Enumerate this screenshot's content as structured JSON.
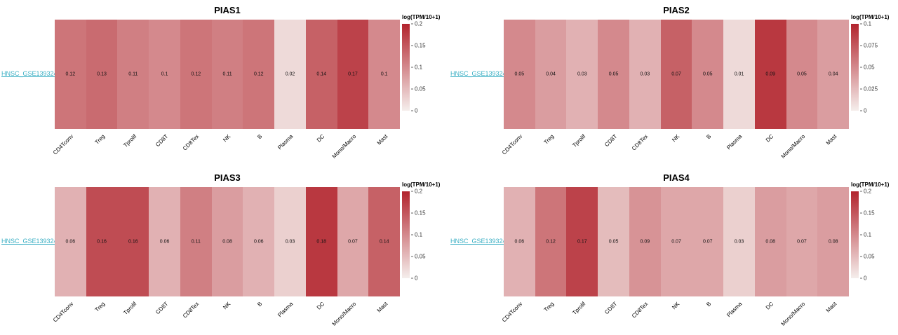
{
  "style": {
    "background": "#ffffff",
    "link_color": "#3aafc4",
    "value_text_color": "#111111"
  },
  "chart_data": [
    {
      "type": "heatmap",
      "title": "PIAS1",
      "dataset_link": "HNSC_GSE139324",
      "legend_title": "log(TPM/10+1)",
      "categories": [
        "CD4Tconv",
        "Treg",
        "Tprolif",
        "CD8T",
        "CD8Tex",
        "NK",
        "B",
        "Plasma",
        "DC",
        "Mono/Macro",
        "Mast"
      ],
      "values": [
        0.12,
        0.13,
        0.11,
        0.1,
        0.12,
        0.11,
        0.12,
        0.02,
        0.14,
        0.17,
        0.1
      ],
      "value_labels": [
        "0.12",
        "0.13",
        "0.11",
        "0.1",
        "0.12",
        "0.11",
        "0.12",
        "0.02",
        "0.14",
        "0.17",
        "0.1"
      ],
      "scale": {
        "min": 0,
        "max": 0.2,
        "tick_labels": [
          "0.2",
          "0.15",
          "0.1",
          "0.05",
          "0"
        ]
      },
      "colors": {
        "low": "#f5eeec",
        "high": "#b2242d"
      }
    },
    {
      "type": "heatmap",
      "title": "PIAS2",
      "dataset_link": "HNSC_GSE139324",
      "legend_title": "log(TPM/10+1)",
      "categories": [
        "CD4Tconv",
        "Treg",
        "Tprolif",
        "CD8T",
        "CD8Tex",
        "NK",
        "B",
        "Plasma",
        "DC",
        "Mono/Macro",
        "Mast"
      ],
      "values": [
        0.05,
        0.04,
        0.03,
        0.05,
        0.03,
        0.07,
        0.05,
        0.01,
        0.09,
        0.05,
        0.04
      ],
      "value_labels": [
        "0.05",
        "0.04",
        "0.03",
        "0.05",
        "0.03",
        "0.07",
        "0.05",
        "0.01",
        "0.09",
        "0.05",
        "0.04"
      ],
      "scale": {
        "min": 0,
        "max": 0.1,
        "tick_labels": [
          "0.1",
          "0.075",
          "0.05",
          "0.025",
          "0"
        ]
      },
      "colors": {
        "low": "#f5eeec",
        "high": "#b2242d"
      }
    },
    {
      "type": "heatmap",
      "title": "PIAS3",
      "dataset_link": "HNSC_GSE139324",
      "legend_title": "log(TPM/10+1)",
      "categories": [
        "CD4Tconv",
        "Treg",
        "Tprolif",
        "CD8T",
        "CD8Tex",
        "NK",
        "B",
        "Plasma",
        "DC",
        "Mono/Macro",
        "Mast"
      ],
      "values": [
        0.06,
        0.16,
        0.16,
        0.06,
        0.11,
        0.08,
        0.06,
        0.03,
        0.18,
        0.07,
        0.14
      ],
      "value_labels": [
        "0.06",
        "0.16",
        "0.16",
        "0.06",
        "0.11",
        "0.08",
        "0.06",
        "0.03",
        "0.18",
        "0.07",
        "0.14"
      ],
      "scale": {
        "min": 0,
        "max": 0.2,
        "tick_labels": [
          "0.2",
          "0.15",
          "0.1",
          "0.05",
          "0"
        ]
      },
      "colors": {
        "low": "#f5eeec",
        "high": "#b2242d"
      }
    },
    {
      "type": "heatmap",
      "title": "PIAS4",
      "dataset_link": "HNSC_GSE139324",
      "legend_title": "log(TPM/10+1)",
      "categories": [
        "CD4Tconv",
        "Treg",
        "Tprolif",
        "CD8T",
        "CD8Tex",
        "NK",
        "B",
        "Plasma",
        "DC",
        "Mono/Macro",
        "Mast"
      ],
      "values": [
        0.06,
        0.12,
        0.17,
        0.05,
        0.09,
        0.07,
        0.07,
        0.03,
        0.08,
        0.07,
        0.08
      ],
      "value_labels": [
        "0.06",
        "0.12",
        "0.17",
        "0.05",
        "0.09",
        "0.07",
        "0.07",
        "0.03",
        "0.08",
        "0.07",
        "0.08"
      ],
      "scale": {
        "min": 0,
        "max": 0.2,
        "tick_labels": [
          "0.2",
          "0.15",
          "0.1",
          "0.05",
          "0"
        ]
      },
      "colors": {
        "low": "#f5eeec",
        "high": "#b2242d"
      }
    }
  ]
}
